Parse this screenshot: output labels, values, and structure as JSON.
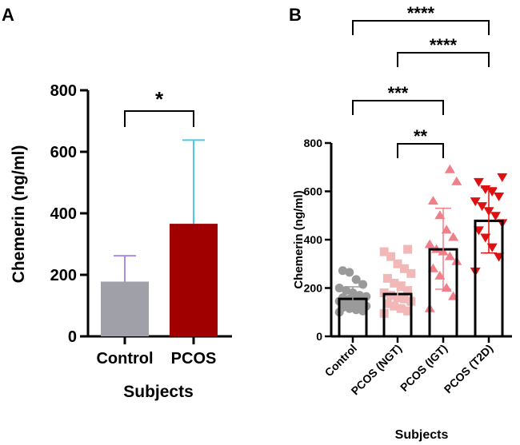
{
  "chart_data": [
    {
      "panel_label": "A",
      "type": "bar",
      "categories": [
        "Control",
        "PCOS"
      ],
      "values": [
        178,
        366
      ],
      "error_upper": [
        262,
        638
      ],
      "bar_colors": [
        "#a0a0a8",
        "#a00000"
      ],
      "error_colors": [
        "#a98de0",
        "#4ec8e6"
      ],
      "ylabel": "Chemerin (ng/ml)",
      "xlabel": "Subjects",
      "ylim": [
        0,
        800
      ],
      "yticks": [
        0,
        200,
        400,
        600,
        800
      ],
      "significance": [
        {
          "from": 0,
          "to": 1,
          "label": "*"
        }
      ]
    },
    {
      "panel_label": "B",
      "type": "bar",
      "categories": [
        "Control",
        "PCOS (NGT)",
        "PCOS (IGT)",
        "PCOS (T2D)"
      ],
      "values": [
        155,
        175,
        360,
        478
      ],
      "error_upper": [
        205,
        225,
        530,
        615
      ],
      "error_lower": [
        110,
        125,
        195,
        345
      ],
      "point_colors": [
        "#9a9a9a",
        "#f2b8b8",
        "#f07f8a",
        "#e01010"
      ],
      "point_markers": [
        "circle",
        "square",
        "triangle-up",
        "triangle-down"
      ],
      "points": [
        [
          100,
          105,
          110,
          115,
          120,
          125,
          130,
          135,
          140,
          145,
          150,
          150,
          155,
          160,
          165,
          170,
          180,
          190,
          200,
          215,
          235,
          265,
          272
        ],
        [
          95,
          105,
          115,
          125,
          135,
          145,
          155,
          160,
          170,
          180,
          190,
          205,
          220,
          240,
          260,
          280,
          300,
          330,
          350,
          360
        ],
        [
          115,
          165,
          200,
          250,
          280,
          310,
          330,
          350,
          360,
          380,
          410,
          440,
          500,
          560,
          640,
          690
        ],
        [
          270,
          330,
          370,
          410,
          440,
          470,
          500,
          520,
          540,
          560,
          580,
          600,
          610,
          640,
          660
        ]
      ],
      "ylabel": "Chemerin (ng/ml)",
      "xlabel": "Subjects",
      "ylim": [
        0,
        800
      ],
      "yticks": [
        0,
        200,
        400,
        600,
        800
      ],
      "significance": [
        {
          "from": 0,
          "to": 3,
          "label": "****"
        },
        {
          "from": 1,
          "to": 3,
          "label": "****"
        },
        {
          "from": 0,
          "to": 2,
          "label": "***"
        },
        {
          "from": 1,
          "to": 2,
          "label": "**"
        }
      ]
    }
  ]
}
